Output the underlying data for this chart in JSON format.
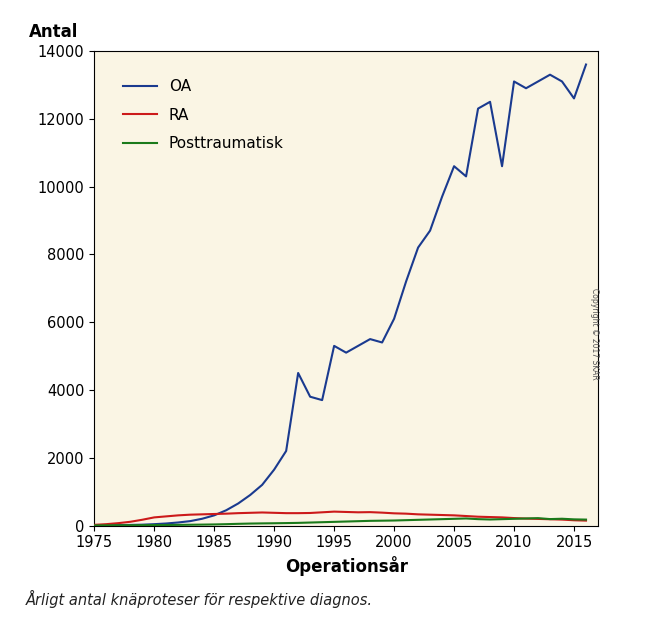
{
  "ylabel": "Antal",
  "xlabel": "Operationsår",
  "caption": "Årligt antal knäproteser för respektive diagnos.",
  "bg_color": "#FAF5E4",
  "fig_bg_color": "#FFFFFF",
  "xlim": [
    1975,
    2017
  ],
  "ylim": [
    0,
    14000
  ],
  "yticks": [
    0,
    2000,
    4000,
    6000,
    8000,
    10000,
    12000,
    14000
  ],
  "xticks": [
    1975,
    1980,
    1985,
    1990,
    1995,
    2000,
    2005,
    2010,
    2015
  ],
  "copyright_text": "Copyright © 2017 SKAR",
  "legend": [
    {
      "label": "OA",
      "color": "#1a3a8f"
    },
    {
      "label": "RA",
      "color": "#cc1a1a"
    },
    {
      "label": "Posttraumatisk",
      "color": "#1a7a1a"
    }
  ],
  "years": [
    1975,
    1976,
    1977,
    1978,
    1979,
    1980,
    1981,
    1982,
    1983,
    1984,
    1985,
    1986,
    1987,
    1988,
    1989,
    1990,
    1991,
    1992,
    1993,
    1994,
    1995,
    1996,
    1997,
    1998,
    1999,
    2000,
    2001,
    2002,
    2003,
    2004,
    2005,
    2006,
    2007,
    2008,
    2009,
    2010,
    2011,
    2012,
    2013,
    2014,
    2015,
    2016
  ],
  "OA": [
    5,
    8,
    12,
    18,
    25,
    40,
    60,
    90,
    130,
    200,
    300,
    450,
    650,
    900,
    1200,
    1650,
    2200,
    4500,
    3800,
    3700,
    5300,
    5100,
    5300,
    5500,
    5400,
    6100,
    7200,
    8200,
    8700,
    9700,
    10600,
    10300,
    12300,
    12500,
    10600,
    13100,
    12900,
    13100,
    13300,
    13100,
    12600,
    13600
  ],
  "RA": [
    20,
    40,
    70,
    110,
    170,
    240,
    270,
    300,
    320,
    330,
    340,
    350,
    365,
    375,
    385,
    375,
    365,
    365,
    370,
    390,
    410,
    400,
    390,
    395,
    380,
    360,
    350,
    330,
    320,
    310,
    300,
    280,
    260,
    250,
    240,
    220,
    205,
    195,
    185,
    175,
    155,
    145
  ],
  "PT": [
    3,
    5,
    7,
    9,
    11,
    14,
    16,
    19,
    23,
    27,
    32,
    40,
    50,
    58,
    63,
    67,
    72,
    78,
    88,
    98,
    108,
    118,
    128,
    138,
    143,
    148,
    158,
    168,
    178,
    188,
    198,
    208,
    188,
    178,
    188,
    198,
    208,
    218,
    190,
    200,
    182,
    175
  ]
}
